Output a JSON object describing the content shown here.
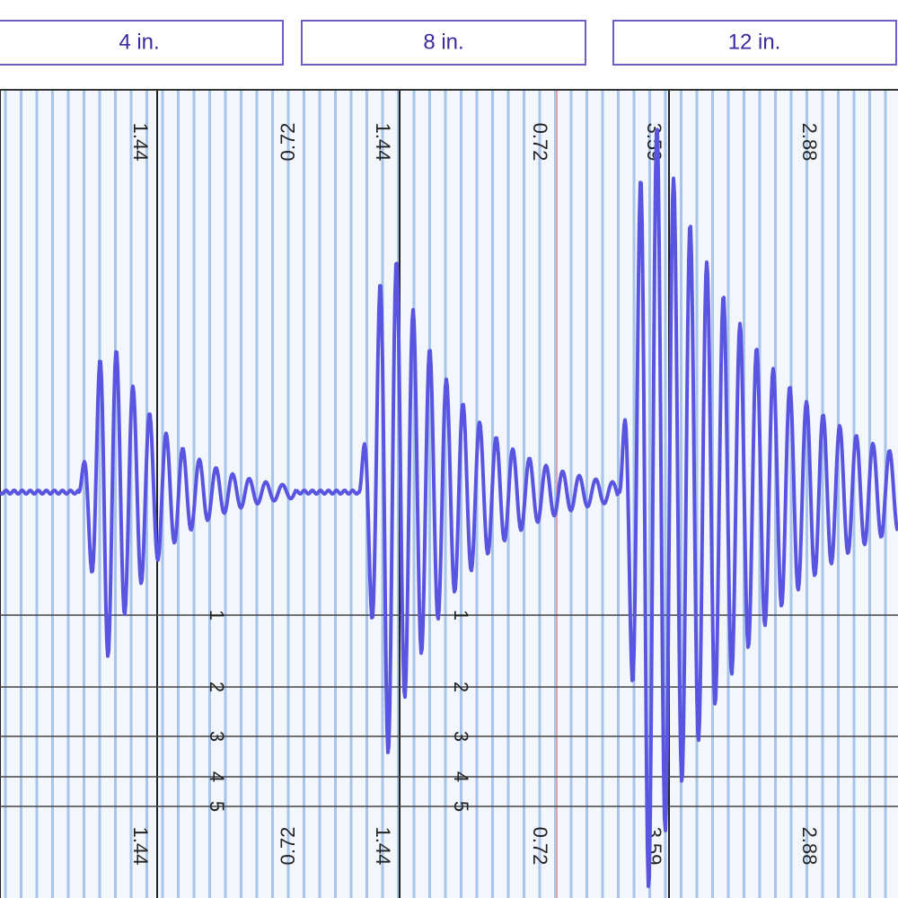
{
  "tabs": [
    "4 in.",
    "8 in.",
    "12 in."
  ],
  "panels": [
    {
      "top_labels": [
        "1.44",
        "0.72"
      ],
      "bottom_labels": [
        "1.44",
        "0.72"
      ],
      "scale_labels": [
        "1",
        "2",
        "3",
        "4",
        "5"
      ]
    },
    {
      "top_labels": [
        "1.44",
        "0.72"
      ],
      "bottom_labels": [
        "1.44",
        "0.72"
      ],
      "scale_labels": [
        "1",
        "2",
        "3",
        "4",
        "5"
      ]
    },
    {
      "top_labels": [
        "3.59",
        "2.88"
      ],
      "bottom_labels": [
        "3.59",
        "2.88"
      ]
    }
  ]
}
